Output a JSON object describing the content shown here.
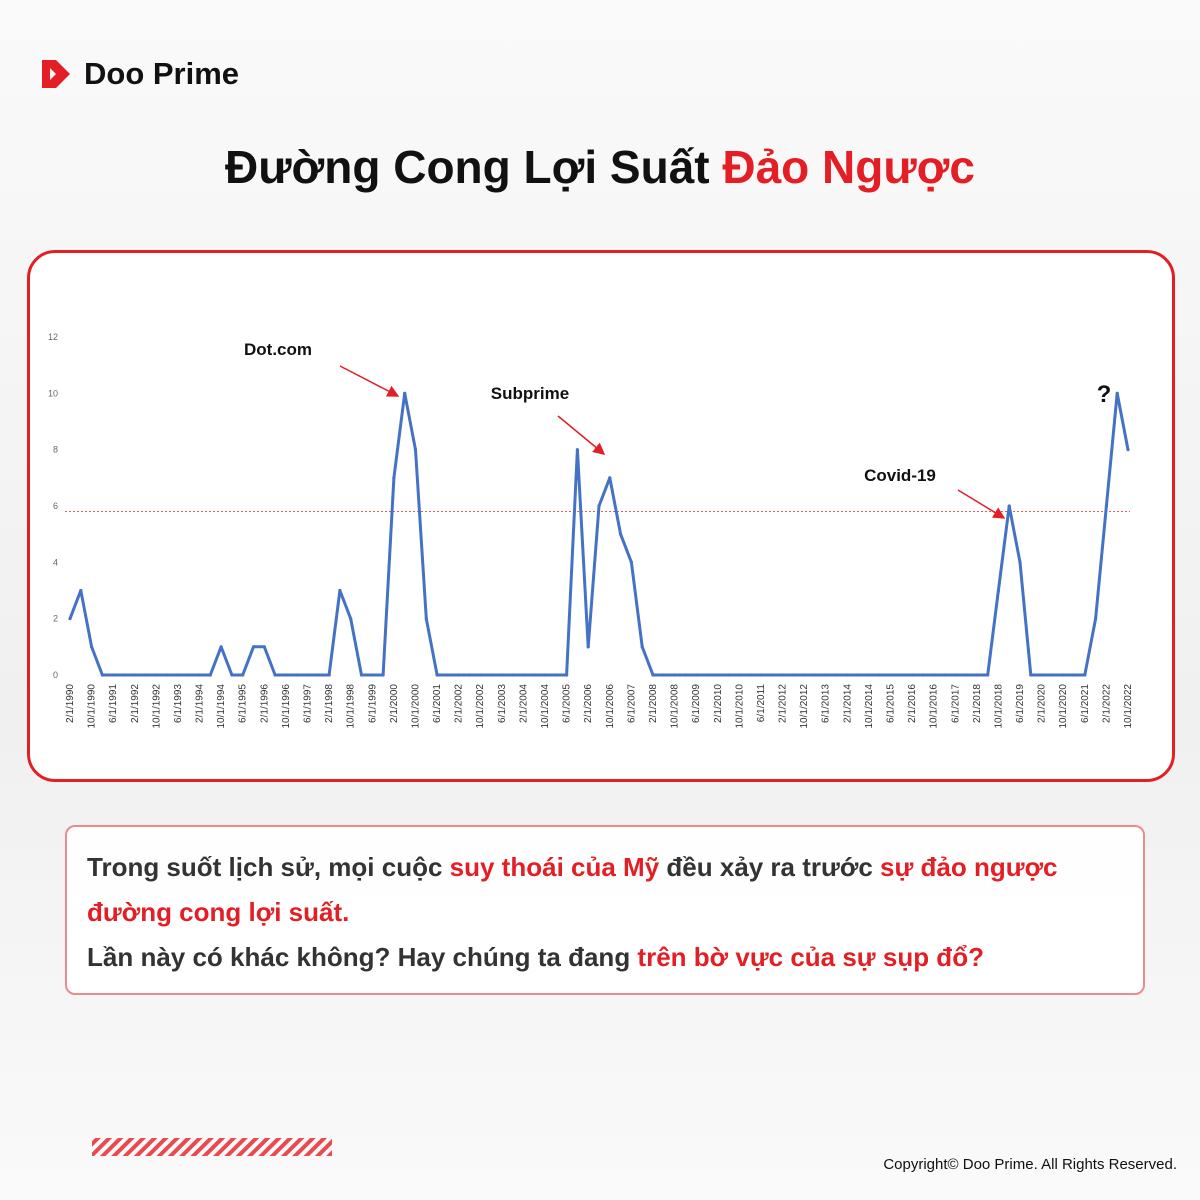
{
  "brand": "Doo Prime",
  "title": {
    "main": "Đường Cong Lợi Suất ",
    "highlight": "Đảo Ngược"
  },
  "chart_data": {
    "type": "line",
    "color": "#4472c4",
    "categories": [
      "2/1/1990",
      null,
      "10/1/1990",
      null,
      "6/1/1991",
      null,
      "2/1/1992",
      null,
      "10/1/1992",
      null,
      "6/1/1993",
      null,
      "2/1/1994",
      null,
      "10/1/1994",
      null,
      "6/1/1995",
      null,
      "2/1/1996",
      null,
      "10/1/1996",
      null,
      "6/1/1997",
      null,
      "2/1/1998",
      null,
      "10/1/1998",
      null,
      "6/1/1999",
      null,
      "2/1/2000",
      null,
      "10/1/2000",
      null,
      "6/1/2001",
      null,
      "2/1/2002",
      null,
      "10/1/2002",
      null,
      "6/1/2003",
      null,
      "2/1/2004",
      null,
      "10/1/2004",
      null,
      "6/1/2005",
      null,
      "2/1/2006",
      null,
      "10/1/2006",
      null,
      "6/1/2007",
      null,
      "2/1/2008",
      null,
      "10/1/2008",
      null,
      "6/1/2009",
      null,
      "2/1/2010",
      null,
      "10/1/2010",
      null,
      "6/1/2011",
      null,
      "2/1/2012",
      null,
      "10/1/2012",
      null,
      "6/1/2013",
      null,
      "2/1/2014",
      null,
      "10/1/2014",
      null,
      "6/1/2015",
      null,
      "2/1/2016",
      null,
      "10/1/2016",
      null,
      "6/1/2017",
      null,
      "2/1/2018",
      null,
      "10/1/2018",
      null,
      "6/1/2019",
      null,
      "2/1/2020",
      null,
      "10/1/2020",
      null,
      "6/1/2021",
      null,
      "2/1/2022",
      null,
      "10/1/2022"
    ],
    "values": [
      2,
      3,
      1,
      0,
      0,
      0,
      0,
      0,
      0,
      0,
      0,
      0,
      0,
      0,
      1,
      0,
      0,
      1,
      1,
      0,
      0,
      0,
      0,
      0,
      0,
      3,
      2,
      0,
      0,
      0,
      7,
      10,
      8,
      2,
      0,
      0,
      0,
      0,
      0,
      0,
      0,
      0,
      0,
      0,
      0,
      0,
      0,
      8,
      1,
      6,
      7,
      5,
      4,
      1,
      0,
      0,
      0,
      0,
      0,
      0,
      0,
      0,
      0,
      0,
      0,
      0,
      0,
      0,
      0,
      0,
      0,
      0,
      0,
      0,
      0,
      0,
      0,
      0,
      0,
      0,
      0,
      0,
      0,
      0,
      0,
      0,
      3,
      6,
      4,
      0,
      0,
      0,
      0,
      0,
      0,
      2,
      6,
      10,
      8
    ],
    "ylim": [
      0,
      12
    ],
    "yticks": [
      0,
      2,
      4,
      6,
      8,
      10,
      12
    ],
    "reference_line": 5.8,
    "reference_color": "#e31e24",
    "annotations": [
      "Dot.com",
      "Subprime",
      "Covid-19",
      "?"
    ]
  },
  "caption": [
    [
      {
        "text": "Trong suốt lịch sử, mọi cuộc ",
        "red": false
      },
      {
        "text": "suy thoái của Mỹ",
        "red": true
      },
      {
        "text": " đều xảy ra trước ",
        "red": false
      },
      {
        "text": "sự đảo ngược đường cong lợi suất.",
        "red": true
      }
    ],
    [
      {
        "text": "Lần này có khác không? Hay chúng ta đang ",
        "red": false
      },
      {
        "text": "trên bờ vực của sự sụp đổ?",
        "red": true
      }
    ]
  ],
  "footer": "Copyright© Doo Prime. All Rights Reserved."
}
